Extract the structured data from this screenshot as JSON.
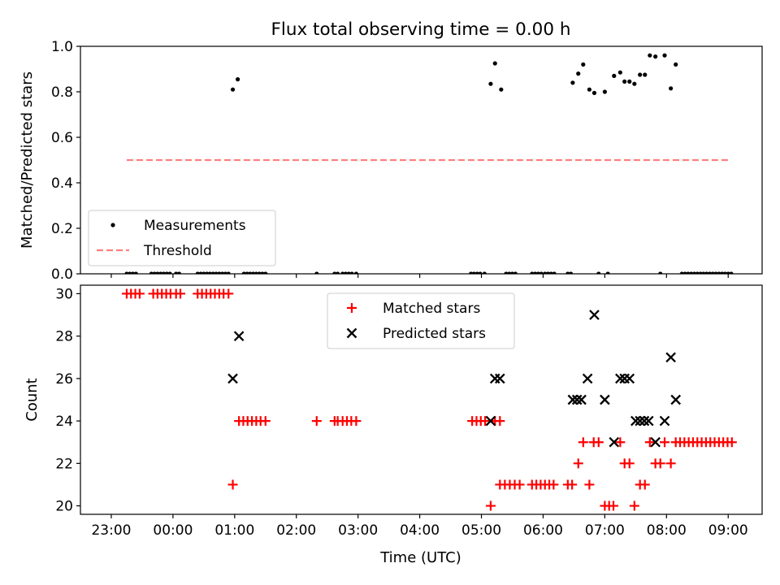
{
  "chart_data": [
    {
      "type": "scatter",
      "title": "Flux total observing time = 0.00 h",
      "ylabel": "Matched/Predicted stars",
      "xlabel": "",
      "xlim": [
        -1.5,
        9.55
      ],
      "ylim": [
        0,
        1.0
      ],
      "x_tick_values": [
        -1,
        0,
        1,
        2,
        3,
        4,
        5,
        6,
        7,
        8,
        9
      ],
      "x_tick_labels": [
        "23:00",
        "00:00",
        "01:00",
        "02:00",
        "03:00",
        "04:00",
        "05:00",
        "06:00",
        "07:00",
        "08:00",
        "09:00"
      ],
      "x_tick_labels_visible": false,
      "y_ticks": [
        0.0,
        0.2,
        0.4,
        0.6,
        0.8,
        1.0
      ],
      "y_tick_labels": [
        "0.0",
        "0.2",
        "0.4",
        "0.6",
        "0.8",
        "1.0"
      ],
      "legend": {
        "position": "lower-left",
        "entries": [
          {
            "label": "Measurements",
            "marker": "dot",
            "color": "#000000"
          },
          {
            "label": "Threshold",
            "marker": "dashed-line",
            "color": "#ff7f7f"
          }
        ]
      },
      "series": [
        {
          "name": "Measurements",
          "marker": "dot",
          "color": "#000000",
          "points": [
            [
              -0.75,
              0
            ],
            [
              -0.7,
              0
            ],
            [
              -0.65,
              0
            ],
            [
              -0.6,
              0
            ],
            [
              -0.35,
              0
            ],
            [
              -0.3,
              0
            ],
            [
              -0.25,
              0
            ],
            [
              -0.2,
              0
            ],
            [
              -0.15,
              0
            ],
            [
              -0.1,
              0
            ],
            [
              -0.05,
              0
            ],
            [
              0.05,
              0
            ],
            [
              0.1,
              0
            ],
            [
              0.4,
              0
            ],
            [
              0.45,
              0
            ],
            [
              0.5,
              0
            ],
            [
              0.55,
              0
            ],
            [
              0.6,
              0
            ],
            [
              0.65,
              0
            ],
            [
              0.7,
              0
            ],
            [
              0.75,
              0
            ],
            [
              0.8,
              0
            ],
            [
              0.85,
              0
            ],
            [
              0.9,
              0
            ],
            [
              0.97,
              0.81
            ],
            [
              1.05,
              0.855
            ],
            [
              1.15,
              0
            ],
            [
              1.2,
              0
            ],
            [
              1.25,
              0
            ],
            [
              1.3,
              0
            ],
            [
              1.35,
              0
            ],
            [
              1.4,
              0
            ],
            [
              1.45,
              0
            ],
            [
              1.5,
              0
            ],
            [
              2.33,
              0
            ],
            [
              2.62,
              0
            ],
            [
              2.67,
              0
            ],
            [
              2.75,
              0
            ],
            [
              2.8,
              0
            ],
            [
              2.85,
              0
            ],
            [
              2.9,
              0
            ],
            [
              2.97,
              0
            ],
            [
              4.83,
              0
            ],
            [
              4.88,
              0
            ],
            [
              4.93,
              0
            ],
            [
              4.98,
              0
            ],
            [
              5.05,
              0
            ],
            [
              5.15,
              0.835
            ],
            [
              5.22,
              0.925
            ],
            [
              5.32,
              0.81
            ],
            [
              5.4,
              0
            ],
            [
              5.45,
              0
            ],
            [
              5.5,
              0
            ],
            [
              5.55,
              0
            ],
            [
              5.82,
              0
            ],
            [
              5.87,
              0
            ],
            [
              5.92,
              0
            ],
            [
              5.97,
              0
            ],
            [
              6.03,
              0
            ],
            [
              6.08,
              0
            ],
            [
              6.13,
              0
            ],
            [
              6.18,
              0
            ],
            [
              6.4,
              0
            ],
            [
              6.45,
              0
            ],
            [
              6.48,
              0.84
            ],
            [
              6.57,
              0.88
            ],
            [
              6.65,
              0.92
            ],
            [
              6.75,
              0.81
            ],
            [
              6.83,
              0.795
            ],
            [
              6.9,
              0
            ],
            [
              7.0,
              0.8
            ],
            [
              7.05,
              0
            ],
            [
              7.15,
              0.87
            ],
            [
              7.25,
              0.885
            ],
            [
              7.32,
              0.845
            ],
            [
              7.4,
              0.845
            ],
            [
              7.48,
              0.835
            ],
            [
              7.57,
              0.875
            ],
            [
              7.65,
              0.875
            ],
            [
              7.73,
              0.96
            ],
            [
              7.82,
              0.955
            ],
            [
              7.9,
              0
            ],
            [
              7.97,
              0.96
            ],
            [
              8.07,
              0.815
            ],
            [
              8.15,
              0.92
            ],
            [
              8.25,
              0
            ],
            [
              8.3,
              0
            ],
            [
              8.35,
              0
            ],
            [
              8.4,
              0
            ],
            [
              8.45,
              0
            ],
            [
              8.5,
              0
            ],
            [
              8.55,
              0
            ],
            [
              8.6,
              0
            ],
            [
              8.65,
              0
            ],
            [
              8.7,
              0
            ],
            [
              8.75,
              0
            ],
            [
              8.8,
              0
            ],
            [
              8.85,
              0
            ],
            [
              8.9,
              0
            ],
            [
              8.95,
              0
            ],
            [
              9.0,
              0
            ],
            [
              9.05,
              0
            ]
          ]
        },
        {
          "name": "Threshold",
          "marker": "dashed-line",
          "color": "#ff7f7f",
          "points": [
            [
              -0.75,
              0.5
            ],
            [
              9.05,
              0.5
            ]
          ]
        }
      ]
    },
    {
      "type": "scatter",
      "title": "",
      "ylabel": "Count",
      "xlabel": "Time (UTC)",
      "xlim": [
        -1.5,
        9.55
      ],
      "ylim": [
        19.6,
        30.4
      ],
      "x_tick_values": [
        -1,
        0,
        1,
        2,
        3,
        4,
        5,
        6,
        7,
        8,
        9
      ],
      "x_tick_labels": [
        "23:00",
        "00:00",
        "01:00",
        "02:00",
        "03:00",
        "04:00",
        "05:00",
        "06:00",
        "07:00",
        "08:00",
        "09:00"
      ],
      "x_tick_labels_visible": true,
      "y_ticks": [
        20,
        22,
        24,
        26,
        28,
        30
      ],
      "y_tick_labels": [
        "20",
        "22",
        "24",
        "26",
        "28",
        "30"
      ],
      "legend": {
        "position": "upper-center",
        "entries": [
          {
            "label": "Matched stars",
            "marker": "plus",
            "color": "#ff0000"
          },
          {
            "label": "Predicted stars",
            "marker": "x",
            "color": "#000000"
          }
        ]
      },
      "series": [
        {
          "name": "Matched stars",
          "marker": "plus",
          "color": "#ff0000",
          "points": [
            [
              -0.75,
              30
            ],
            [
              -0.68,
              30
            ],
            [
              -0.61,
              30
            ],
            [
              -0.54,
              30
            ],
            [
              -0.32,
              30
            ],
            [
              -0.25,
              30
            ],
            [
              -0.18,
              30
            ],
            [
              -0.11,
              30
            ],
            [
              -0.04,
              30
            ],
            [
              0.05,
              30
            ],
            [
              0.12,
              30
            ],
            [
              0.4,
              30
            ],
            [
              0.47,
              30
            ],
            [
              0.54,
              30
            ],
            [
              0.61,
              30
            ],
            [
              0.68,
              30
            ],
            [
              0.75,
              30
            ],
            [
              0.82,
              30
            ],
            [
              0.9,
              30
            ],
            [
              0.97,
              21
            ],
            [
              1.07,
              24
            ],
            [
              1.14,
              24
            ],
            [
              1.21,
              24
            ],
            [
              1.28,
              24
            ],
            [
              1.35,
              24
            ],
            [
              1.42,
              24
            ],
            [
              1.5,
              24
            ],
            [
              2.33,
              24
            ],
            [
              2.62,
              24
            ],
            [
              2.67,
              24
            ],
            [
              2.75,
              24
            ],
            [
              2.82,
              24
            ],
            [
              2.89,
              24
            ],
            [
              2.97,
              24
            ],
            [
              4.85,
              24
            ],
            [
              4.92,
              24
            ],
            [
              4.99,
              24
            ],
            [
              5.06,
              24
            ],
            [
              5.15,
              20
            ],
            [
              5.22,
              24
            ],
            [
              5.3,
              24
            ],
            [
              5.3,
              21
            ],
            [
              5.38,
              21
            ],
            [
              5.46,
              21
            ],
            [
              5.54,
              21
            ],
            [
              5.62,
              21
            ],
            [
              5.82,
              21
            ],
            [
              5.89,
              21
            ],
            [
              5.96,
              21
            ],
            [
              6.03,
              21
            ],
            [
              6.1,
              21
            ],
            [
              6.17,
              21
            ],
            [
              6.4,
              21
            ],
            [
              6.47,
              21
            ],
            [
              6.57,
              22
            ],
            [
              6.65,
              23
            ],
            [
              6.75,
              21
            ],
            [
              6.82,
              23
            ],
            [
              6.9,
              23
            ],
            [
              7.0,
              20
            ],
            [
              7.07,
              20
            ],
            [
              7.14,
              20
            ],
            [
              7.25,
              23
            ],
            [
              7.32,
              22
            ],
            [
              7.4,
              22
            ],
            [
              7.48,
              20
            ],
            [
              7.57,
              21
            ],
            [
              7.65,
              21
            ],
            [
              7.73,
              23
            ],
            [
              7.82,
              22
            ],
            [
              7.9,
              22
            ],
            [
              7.97,
              23
            ],
            [
              8.07,
              22
            ],
            [
              8.15,
              23
            ],
            [
              8.22,
              23
            ],
            [
              8.29,
              23
            ],
            [
              8.36,
              23
            ],
            [
              8.43,
              23
            ],
            [
              8.5,
              23
            ],
            [
              8.57,
              23
            ],
            [
              8.64,
              23
            ],
            [
              8.71,
              23
            ],
            [
              8.78,
              23
            ],
            [
              8.85,
              23
            ],
            [
              8.92,
              23
            ],
            [
              8.99,
              23
            ],
            [
              9.06,
              23
            ]
          ]
        },
        {
          "name": "Predicted stars",
          "marker": "x",
          "color": "#000000",
          "points": [
            [
              0.97,
              26
            ],
            [
              1.07,
              28
            ],
            [
              5.15,
              24
            ],
            [
              5.22,
              26
            ],
            [
              5.3,
              26
            ],
            [
              6.48,
              25
            ],
            [
              6.55,
              25
            ],
            [
              6.62,
              25
            ],
            [
              6.72,
              26
            ],
            [
              6.83,
              29
            ],
            [
              7.0,
              25
            ],
            [
              7.15,
              23
            ],
            [
              7.25,
              26
            ],
            [
              7.32,
              26
            ],
            [
              7.4,
              26
            ],
            [
              7.5,
              24
            ],
            [
              7.57,
              24
            ],
            [
              7.64,
              24
            ],
            [
              7.71,
              24
            ],
            [
              7.82,
              23
            ],
            [
              7.97,
              24
            ],
            [
              8.07,
              27
            ],
            [
              8.15,
              25
            ]
          ]
        }
      ]
    }
  ]
}
